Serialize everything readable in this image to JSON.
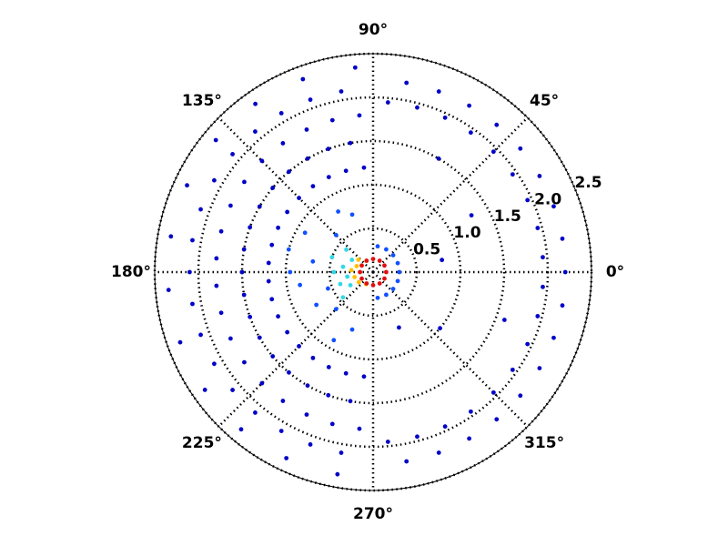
{
  "chart_data": {
    "type": "polar-scatter",
    "rlim": [
      0,
      2.5
    ],
    "rticks": [
      0.5,
      {
        "value": 1,
        "label": "1.0"
      },
      1.5,
      {
        "value": 2,
        "label": "2.0"
      },
      2.5
    ],
    "thetaticks": [
      {
        "value": 0,
        "label": "0°"
      },
      {
        "value": 45,
        "label": "45°"
      },
      {
        "value": 90,
        "label": "90°"
      },
      {
        "value": 135,
        "label": "135°"
      },
      {
        "value": 180,
        "label": "180°"
      },
      {
        "value": 225,
        "label": "225°"
      },
      {
        "value": 270,
        "label": "270°"
      },
      {
        "value": 315,
        "label": "315°"
      }
    ],
    "grid": true,
    "series": [
      {
        "color": "#0000c8",
        "x": [
          -85,
          -75,
          -65,
          -55,
          -45,
          -35,
          -25,
          -15,
          -5,
          5,
          15,
          25,
          35,
          45,
          55,
          65,
          75,
          85,
          -80,
          -70,
          -60,
          -50,
          -40,
          -30,
          -20,
          -10,
          0,
          10,
          20,
          30,
          40,
          50,
          60,
          70,
          80,
          30,
          -40,
          10,
          -20,
          60,
          -65,
          95,
          105,
          115,
          125,
          135,
          145,
          155,
          165,
          175,
          185,
          195,
          205,
          215,
          225,
          235,
          245,
          255,
          265,
          100,
          110,
          120,
          130,
          140,
          150,
          160,
          170,
          180,
          190,
          200,
          210,
          220,
          230,
          240,
          250,
          260,
          95,
          105,
          115,
          125,
          135,
          145,
          155,
          165,
          175,
          185,
          195,
          205,
          215,
          225,
          235,
          245,
          255,
          265,
          100,
          110,
          120,
          130,
          140,
          150,
          160,
          170,
          180,
          190,
          200,
          210,
          220,
          230,
          240,
          250,
          260,
          95,
          110,
          125,
          140,
          155,
          170,
          185,
          200,
          215,
          230,
          245,
          260
        ],
        "values": [
          1.95,
          1.95,
          1.95,
          1.95,
          1.95,
          1.95,
          1.95,
          1.95,
          1.95,
          1.95,
          1.95,
          1.95,
          1.95,
          1.95,
          1.95,
          1.95,
          1.95,
          1.95,
          2.2,
          2.2,
          2.2,
          2.2,
          2.2,
          2.2,
          2.2,
          2.2,
          2.2,
          2.2,
          2.2,
          2.2,
          2.2,
          2.2,
          2.2,
          2.2,
          2.2,
          1.3,
          1.0,
          0.8,
          1.6,
          1.5,
          0.7,
          1.2,
          1.2,
          1.2,
          1.2,
          1.2,
          1.2,
          1.2,
          1.2,
          1.2,
          1.2,
          1.2,
          1.2,
          1.2,
          1.2,
          1.2,
          1.2,
          1.2,
          1.2,
          1.5,
          1.5,
          1.5,
          1.5,
          1.5,
          1.5,
          1.5,
          1.5,
          1.5,
          1.5,
          1.5,
          1.5,
          1.5,
          1.5,
          1.5,
          1.5,
          1.5,
          1.8,
          1.8,
          1.8,
          1.8,
          1.8,
          1.8,
          1.8,
          1.8,
          1.8,
          1.8,
          1.8,
          1.8,
          1.8,
          1.8,
          1.8,
          1.8,
          1.8,
          1.8,
          2.1,
          2.1,
          2.1,
          2.1,
          2.1,
          2.1,
          2.1,
          2.1,
          2.1,
          2.1,
          2.1,
          2.1,
          2.1,
          2.1,
          2.1,
          2.1,
          2.1,
          2.35,
          2.35,
          2.35,
          2.35,
          2.35,
          2.35,
          2.35,
          2.35,
          2.35,
          2.35,
          2.35,
          2.35
        ]
      },
      {
        "color": "#1050ff",
        "x": [
          120,
          150,
          170,
          190,
          210,
          240,
          135,
          200,
          165,
          225,
          180,
          110,
          250,
          -80,
          -60,
          -40,
          -20,
          0,
          20,
          40,
          60,
          80
        ],
        "values": [
          0.8,
          0.9,
          0.7,
          0.85,
          0.75,
          0.9,
          0.6,
          0.55,
          1.0,
          0.6,
          0.95,
          0.7,
          0.7,
          0.3,
          0.3,
          0.3,
          0.3,
          0.3,
          0.3,
          0.3,
          0.3,
          0.3
        ]
      },
      {
        "color": "#30d8e8",
        "x": [
          160,
          180,
          200,
          140,
          220,
          170,
          190,
          150,
          210
        ],
        "values": [
          0.5,
          0.45,
          0.4,
          0.4,
          0.45,
          0.35,
          0.3,
          0.28,
          0.3
        ]
      },
      {
        "color": "#ffc000",
        "x": [
          175,
          195,
          160,
          215,
          140,
          120,
          240
        ],
        "values": [
          0.25,
          0.22,
          0.2,
          0.2,
          0.22,
          0.15,
          0.16
        ]
      },
      {
        "color": "#e01010",
        "x": [
          0,
          30,
          60,
          90,
          120,
          150,
          180,
          210,
          240,
          270,
          300,
          330
        ],
        "values": [
          0.15,
          0.15,
          0.15,
          0.15,
          0.15,
          0.15,
          0.15,
          0.15,
          0.15,
          0.15,
          0.15,
          0.15
        ]
      }
    ]
  }
}
